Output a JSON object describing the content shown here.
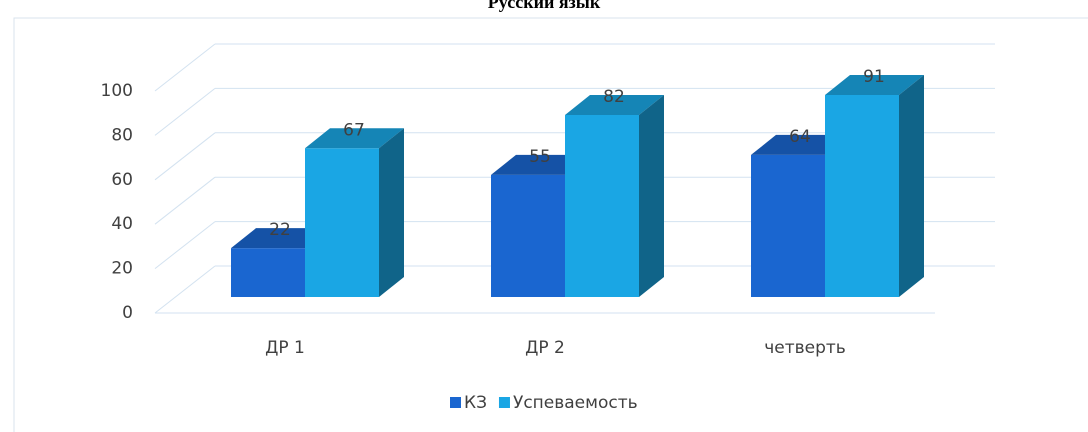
{
  "chart_data": {
    "type": "bar3d",
    "title": "Русский язык",
    "categories": [
      "ДР 1",
      "ДР 2",
      "четверть"
    ],
    "series": [
      {
        "name": "КЗ",
        "color": "#1a66d0",
        "values": [
          22,
          55,
          64
        ]
      },
      {
        "name": "Успеваемость",
        "color": "#1aa6e4",
        "values": [
          67,
          82,
          91
        ]
      }
    ],
    "ylim": [
      0,
      100
    ],
    "yticks": [
      0,
      20,
      40,
      60,
      80,
      100
    ],
    "grid": true,
    "legend": "bottom"
  }
}
